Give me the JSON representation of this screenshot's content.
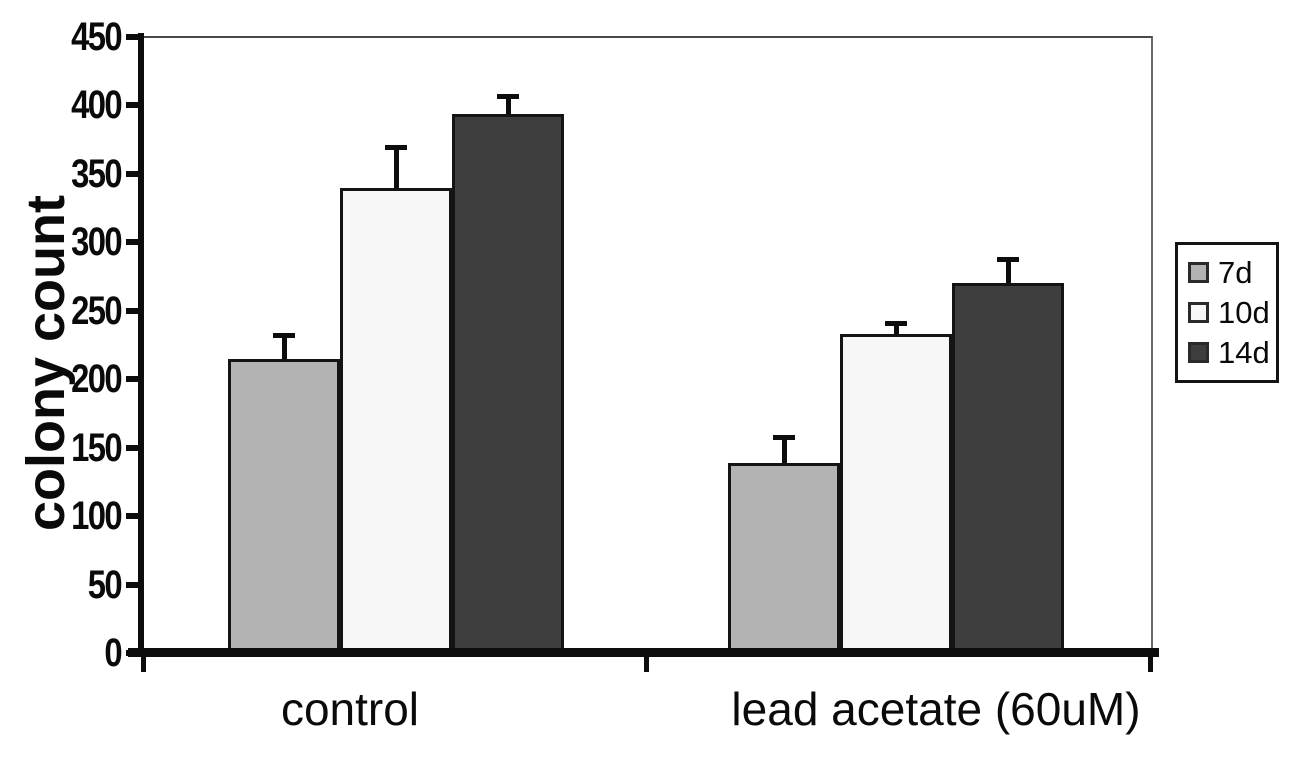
{
  "figure": {
    "background": "#ffffff",
    "axis_color": "#0d0d0d"
  },
  "chart_data": {
    "type": "bar",
    "title": "",
    "xlabel": "",
    "ylabel": "colony count",
    "categories": [
      "control",
      "lead acetate (60uM)"
    ],
    "series": [
      {
        "name": "7d",
        "color": "#b3b3b3",
        "values": [
          215,
          139
        ],
        "errors": [
          17,
          19
        ]
      },
      {
        "name": "10d",
        "color": "#f7f7f7",
        "values": [
          340,
          233
        ],
        "errors": [
          30,
          8
        ]
      },
      {
        "name": "14d",
        "color": "#3e3e3e",
        "values": [
          394,
          270
        ],
        "errors": [
          13,
          18
        ]
      }
    ],
    "ylim": [
      0,
      450
    ],
    "y_ticks": [
      0,
      50,
      100,
      150,
      200,
      250,
      300,
      350,
      400,
      450
    ],
    "grid": false,
    "error_bars": true,
    "legend_position": "right"
  }
}
